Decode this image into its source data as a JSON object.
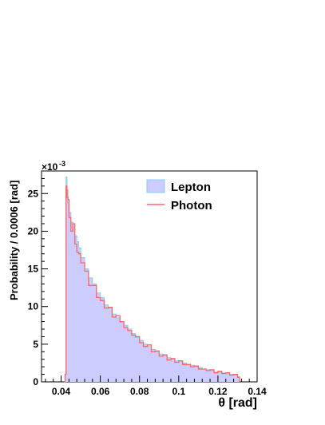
{
  "chart_data": {
    "type": "histogram",
    "ylabel": "Probability / 0.0006 [rad]",
    "xlabel": "θ [rad]",
    "y_scale_label": "×10",
    "y_scale_exponent": "-3",
    "xlim": [
      0.03,
      0.14
    ],
    "ylim": [
      0,
      0.028
    ],
    "x_ticks": [
      0.04,
      0.06,
      0.08,
      0.1,
      0.12,
      0.14
    ],
    "x_tick_labels": [
      "0.04",
      "0.06",
      "0.08",
      "0.1",
      "0.12",
      "0.14"
    ],
    "y_ticks": [
      0,
      0.005,
      0.01,
      0.015,
      0.02,
      0.025
    ],
    "y_tick_labels": [
      "0",
      "5",
      "10",
      "15",
      "20",
      "25"
    ],
    "legend": {
      "position": "top-right",
      "entries": [
        "Lepton",
        "Photon"
      ]
    },
    "colors": {
      "lepton_fill": "#ccccff",
      "lepton_line": "#88ccee",
      "photon_line": "#ff6666"
    },
    "bin_width": 0.0006,
    "series": [
      {
        "name": "Lepton",
        "style": "filled-histogram",
        "x": [
          0.0417,
          0.042,
          0.0425,
          0.043,
          0.0435,
          0.044,
          0.045,
          0.046,
          0.047,
          0.048,
          0.049,
          0.05,
          0.052,
          0.054,
          0.056,
          0.058,
          0.06,
          0.062,
          0.064,
          0.066,
          0.068,
          0.07,
          0.072,
          0.074,
          0.076,
          0.078,
          0.08,
          0.082,
          0.084,
          0.086,
          0.088,
          0.09,
          0.092,
          0.094,
          0.096,
          0.098,
          0.1,
          0.102,
          0.104,
          0.106,
          0.108,
          0.11,
          0.112,
          0.114,
          0.116,
          0.118,
          0.12,
          0.122,
          0.124,
          0.126,
          0.128,
          0.13,
          0.131
        ],
        "y": [
          0.0,
          0.001,
          0.0272,
          0.0255,
          0.0238,
          0.0225,
          0.0212,
          0.0205,
          0.0194,
          0.0186,
          0.0178,
          0.0165,
          0.015,
          0.0138,
          0.013,
          0.0118,
          0.0112,
          0.0102,
          0.0098,
          0.009,
          0.0085,
          0.0079,
          0.0075,
          0.007,
          0.0064,
          0.0059,
          0.0055,
          0.005,
          0.0047,
          0.0043,
          0.004,
          0.0037,
          0.0035,
          0.0032,
          0.003,
          0.0028,
          0.0027,
          0.0025,
          0.0023,
          0.0022,
          0.002,
          0.0019,
          0.0017,
          0.0016,
          0.0015,
          0.0013,
          0.0013,
          0.0012,
          0.0011,
          0.001,
          0.0009,
          0.0007,
          0.0
        ]
      },
      {
        "name": "Photon",
        "style": "line-histogram",
        "x": [
          0.0417,
          0.042,
          0.0425,
          0.043,
          0.0435,
          0.044,
          0.045,
          0.046,
          0.047,
          0.048,
          0.049,
          0.05,
          0.052,
          0.054,
          0.056,
          0.058,
          0.06,
          0.062,
          0.064,
          0.066,
          0.068,
          0.07,
          0.072,
          0.074,
          0.076,
          0.078,
          0.08,
          0.082,
          0.084,
          0.086,
          0.088,
          0.09,
          0.092,
          0.094,
          0.096,
          0.098,
          0.1,
          0.102,
          0.104,
          0.106,
          0.108,
          0.11,
          0.112,
          0.114,
          0.116,
          0.118,
          0.12,
          0.122,
          0.124,
          0.126,
          0.128,
          0.13,
          0.131
        ],
        "y": [
          0.0,
          0.001,
          0.026,
          0.0245,
          0.0242,
          0.0218,
          0.02,
          0.021,
          0.0183,
          0.0172,
          0.017,
          0.0158,
          0.0147,
          0.0128,
          0.0128,
          0.0112,
          0.0108,
          0.0098,
          0.0099,
          0.0086,
          0.0088,
          0.008,
          0.0072,
          0.0068,
          0.0062,
          0.006,
          0.0052,
          0.0047,
          0.0049,
          0.004,
          0.0041,
          0.0034,
          0.0036,
          0.0029,
          0.0031,
          0.0026,
          0.0028,
          0.0023,
          0.0023,
          0.002,
          0.0021,
          0.0017,
          0.0017,
          0.0015,
          0.0016,
          0.0012,
          0.0014,
          0.0011,
          0.0012,
          0.0009,
          0.001,
          0.0006,
          0.0
        ]
      }
    ]
  }
}
